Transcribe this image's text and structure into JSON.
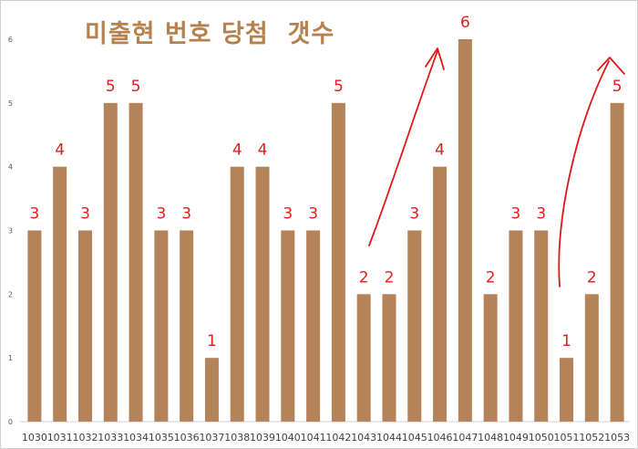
{
  "chart_data": {
    "type": "bar",
    "title": "미출현 번호 당첨  갯수",
    "categories": [
      "1030",
      "1031",
      "1032",
      "1033",
      "1034",
      "1035",
      "1036",
      "1037",
      "1038",
      "1039",
      "1040",
      "1041",
      "1042",
      "1043",
      "1044",
      "1045",
      "1046",
      "1047",
      "1048",
      "1049",
      "1050",
      "1051",
      "1052",
      "1053"
    ],
    "values": [
      3,
      4,
      3,
      5,
      5,
      3,
      3,
      1,
      4,
      4,
      3,
      3,
      5,
      2,
      2,
      3,
      4,
      6,
      2,
      3,
      3,
      1,
      2,
      5
    ],
    "yticks": [
      "0",
      "1",
      "2",
      "3",
      "4",
      "5",
      "6"
    ],
    "ylim": [
      0,
      6
    ],
    "grid": false,
    "legend": "none",
    "bar_color": "#b5835a",
    "label_color": "#e0201b",
    "annotations": [
      "up-arrow",
      "up-arrow"
    ]
  }
}
